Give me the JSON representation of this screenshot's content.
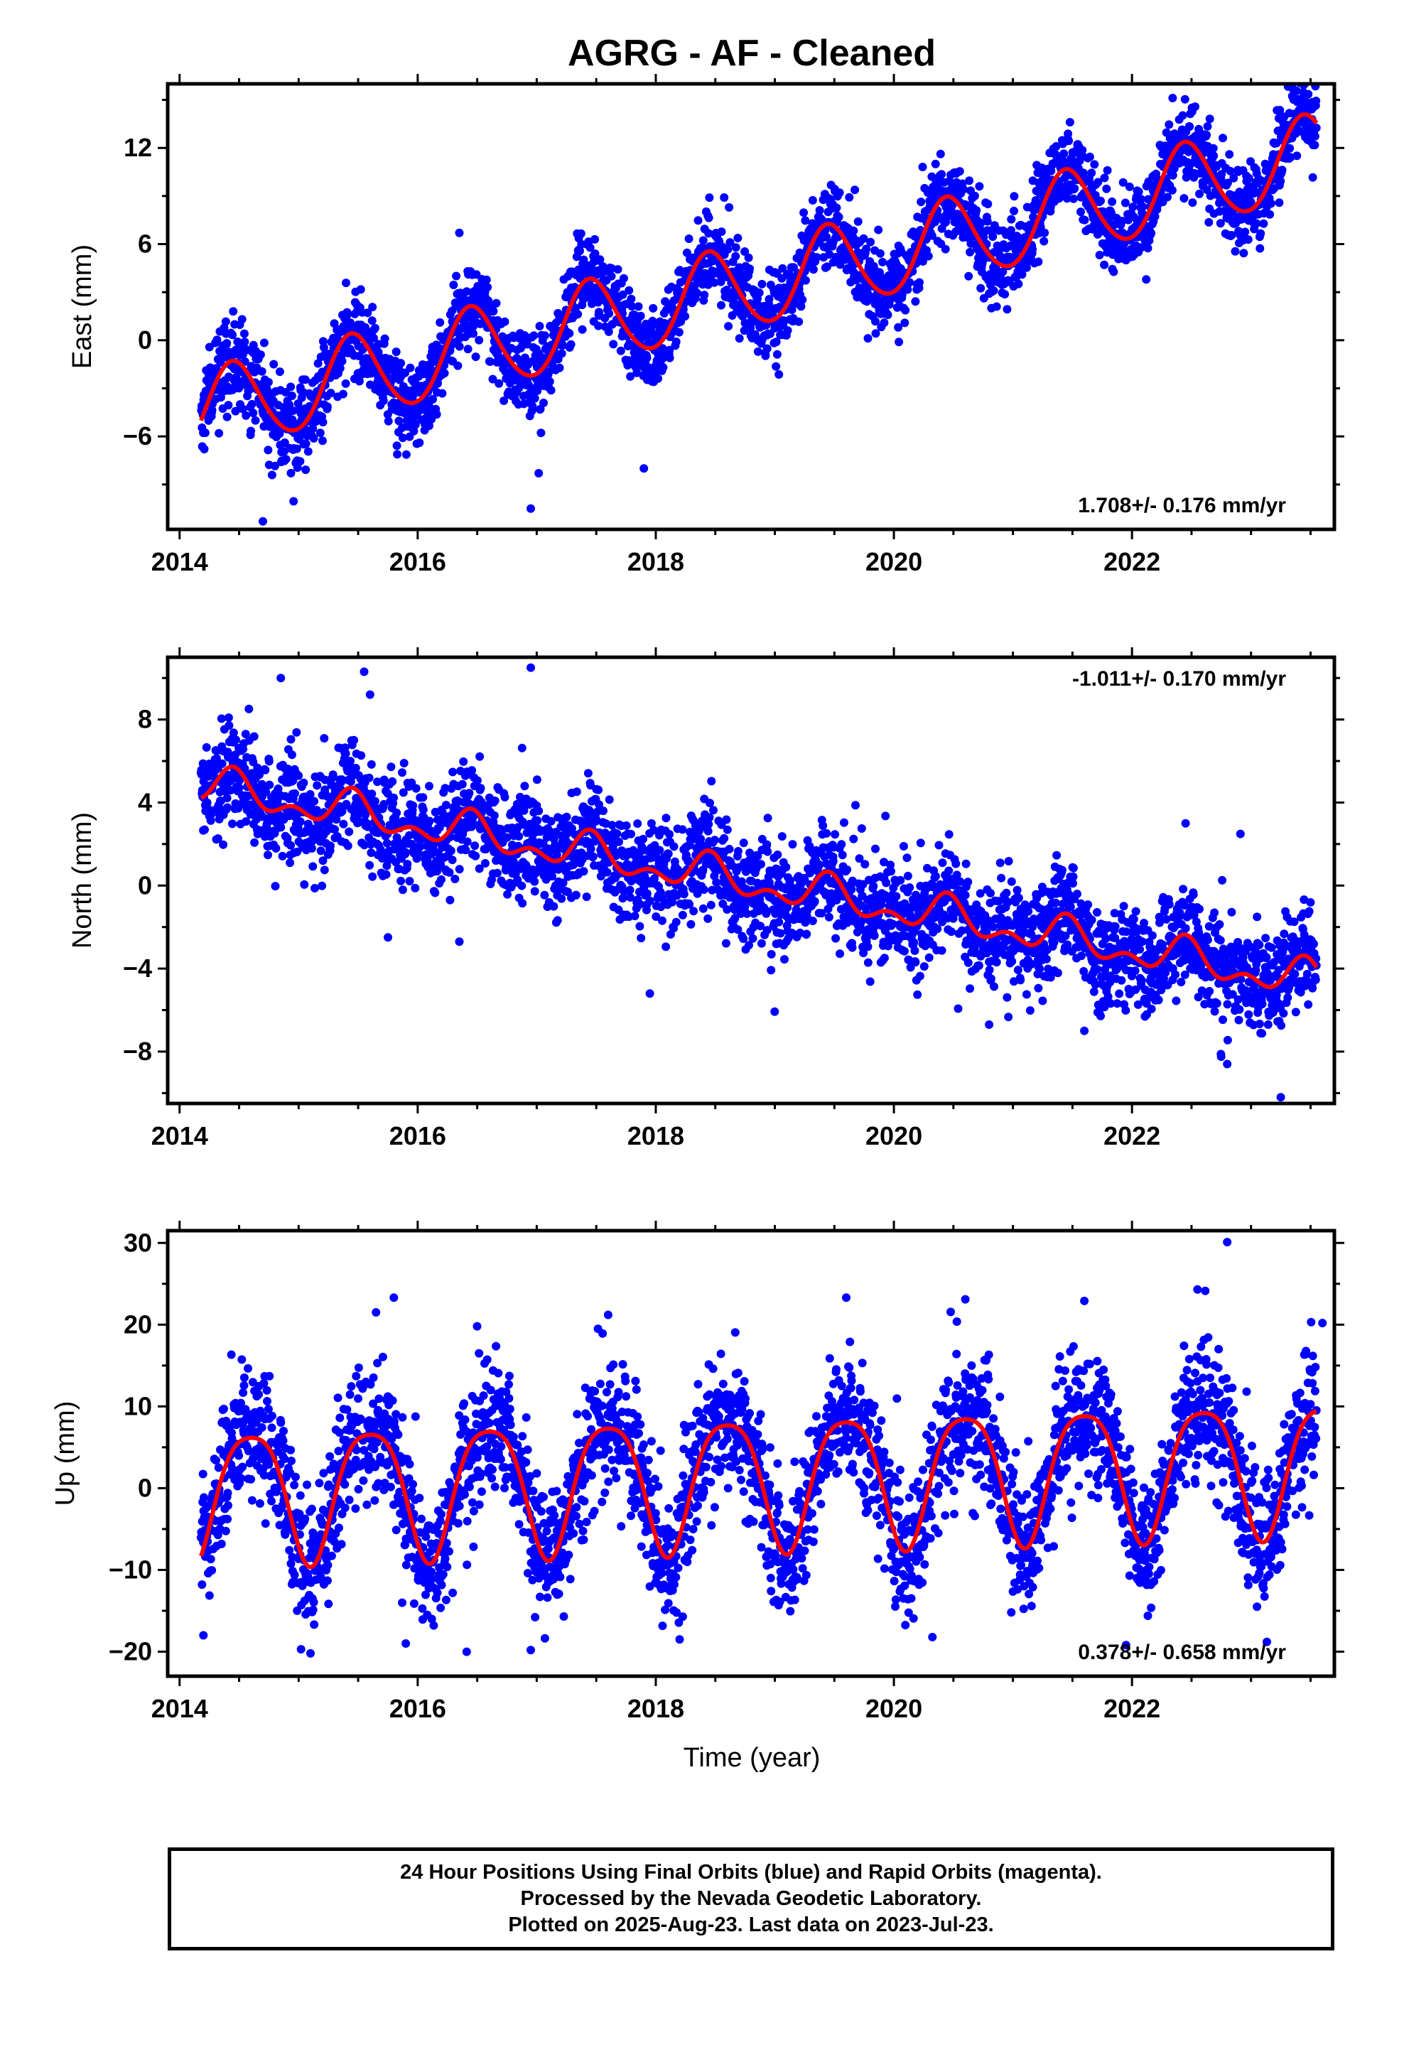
{
  "figure": {
    "title": "AGRG  - AF - Cleaned",
    "xlabel": "Time (year)",
    "footer": [
      "24 Hour Positions Using Final Orbits (blue) and Rapid Orbits (magenta).",
      "Processed by the Nevada Geodetic Laboratory.",
      "Plotted on 2025-Aug-23. Last data on 2023-Jul-23."
    ],
    "colors": {
      "points": "#0000ff",
      "model": "#ff0000",
      "frame": "#000000"
    }
  },
  "chart_data": [
    {
      "type": "scatter",
      "ylabel": "East (mm)",
      "rate_label": "1.708+/- 0.176 mm/yr",
      "rate_position": "bottom-right",
      "xlim": [
        2013.9,
        2023.7
      ],
      "ylim": [
        -11.8,
        16
      ],
      "xticks": [
        2014,
        2016,
        2018,
        2020,
        2022
      ],
      "yticks": [
        -6,
        0,
        6,
        12
      ],
      "model": {
        "name": "",
        "offset": -4.5,
        "trend": 1.708,
        "annual_amp": 2.6,
        "annual_peak": 0.45,
        "semi_amp": 0.2,
        "semi_peak": 0.4
      },
      "scatter_sd": 1.3,
      "data_range": [
        2014.18,
        2023.55
      ],
      "outliers": [
        [
          2014.45,
          1.8
        ],
        [
          2016.35,
          6.7
        ],
        [
          2016.95,
          -10.5
        ],
        [
          2014.7,
          -11.3
        ],
        [
          2018.45,
          8.9
        ],
        [
          2017.9,
          -8.0
        ],
        [
          2020.35,
          11.0
        ],
        [
          2023.45,
          15.2
        ]
      ]
    },
    {
      "type": "scatter",
      "ylabel": "North (mm)",
      "rate_label": "-1.011+/- 0.170 mm/yr",
      "rate_position": "top-right",
      "xlim": [
        2013.9,
        2023.7
      ],
      "ylim": [
        -10.5,
        11
      ],
      "xticks": [
        2014,
        2016,
        2018,
        2020,
        2022
      ],
      "yticks": [
        -8,
        -4,
        0,
        4,
        8
      ],
      "model": {
        "name": "",
        "offset": 4.8,
        "trend": -1.011,
        "annual_amp": 0.7,
        "annual_peak": 0.45,
        "semi_amp": 0.5,
        "semi_peak": 0.45
      },
      "scatter_sd": 1.2,
      "data_range": [
        2014.18,
        2023.55
      ],
      "outliers": [
        [
          2014.85,
          10.0
        ],
        [
          2015.55,
          10.3
        ],
        [
          2016.95,
          10.5
        ],
        [
          2015.6,
          9.2
        ],
        [
          2015.75,
          -2.5
        ],
        [
          2016.35,
          -2.7
        ],
        [
          2017.95,
          -5.2
        ],
        [
          2020.8,
          -6.7
        ],
        [
          2022.8,
          -8.6
        ],
        [
          2023.25,
          -10.2
        ],
        [
          2021.6,
          -7.0
        ],
        [
          2022.45,
          3.0
        ]
      ]
    },
    {
      "type": "scatter",
      "ylabel": "Up (mm)",
      "rate_label": "0.378+/- 0.658 mm/yr",
      "rate_position": "bottom-right",
      "xlim": [
        2013.9,
        2023.7
      ],
      "ylim": [
        -23,
        31.5
      ],
      "xticks": [
        2014,
        2016,
        2018,
        2020,
        2022
      ],
      "yticks": [
        -20,
        -10,
        0,
        10,
        20,
        30
      ],
      "model": {
        "name": "",
        "offset": -0.5,
        "trend": 0.378,
        "annual_amp": 8.0,
        "annual_peak": 0.6,
        "semi_amp": 1.5,
        "semi_peak": 0.35
      },
      "scatter_sd": 4.0,
      "data_range": [
        2014.18,
        2023.55
      ],
      "outliers": [
        [
          2015.8,
          23.3
        ],
        [
          2015.65,
          21.5
        ],
        [
          2017.6,
          21.2
        ],
        [
          2019.6,
          23.3
        ],
        [
          2020.6,
          23.1
        ],
        [
          2021.6,
          22.9
        ],
        [
          2022.55,
          24.3
        ],
        [
          2022.8,
          30.1
        ],
        [
          2023.6,
          20.2
        ],
        [
          2016.95,
          -19.8
        ],
        [
          2015.9,
          -19.0
        ],
        [
          2018.2,
          -18.5
        ],
        [
          2021.95,
          -19.2
        ],
        [
          2014.2,
          -18.0
        ],
        [
          2023.05,
          -14.5
        ]
      ]
    }
  ]
}
